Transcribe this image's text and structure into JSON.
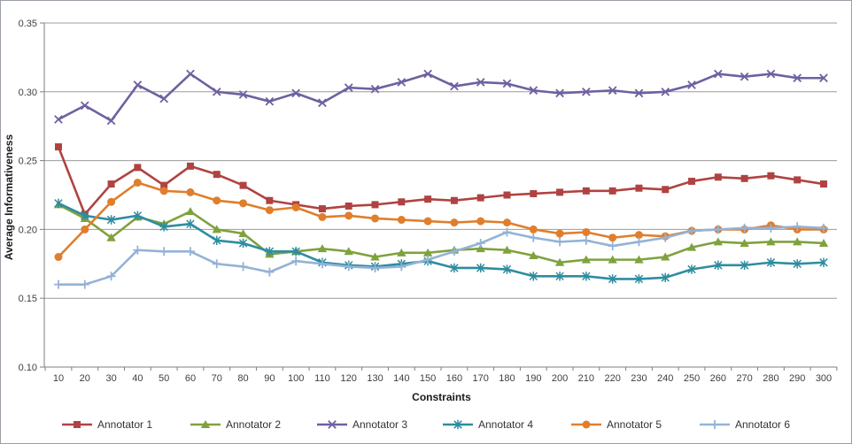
{
  "chart_data": {
    "type": "line",
    "title": "",
    "xlabel": "Constraints",
    "ylabel": "Average Informativeness",
    "x": [
      10,
      20,
      30,
      40,
      50,
      60,
      70,
      80,
      90,
      100,
      110,
      120,
      130,
      140,
      150,
      160,
      170,
      180,
      190,
      200,
      210,
      220,
      230,
      240,
      250,
      260,
      270,
      280,
      290,
      300
    ],
    "ylim": [
      0.1,
      0.35
    ],
    "y_ticks": [
      0.35,
      0.3,
      0.25,
      0.2,
      0.15,
      0.1
    ],
    "y_tick_labels": [
      "0.35",
      "0.30",
      "0.25",
      "0.20",
      "0.15",
      "0.10"
    ],
    "grid": "horizontal",
    "legend_position": "bottom",
    "grid_color": "#9c9c9c",
    "axis_color": "#7f7f7f",
    "tick_text_color": "#3f3f3f",
    "background_color": "#ffffff",
    "series": [
      {
        "name": "Annotator 1",
        "marker": "square",
        "color": "#b04341",
        "values": [
          0.26,
          0.211,
          0.233,
          0.245,
          0.232,
          0.246,
          0.24,
          0.232,
          0.221,
          0.218,
          0.215,
          0.217,
          0.218,
          0.22,
          0.222,
          0.221,
          0.223,
          0.225,
          0.226,
          0.227,
          0.228,
          0.228,
          0.23,
          0.229,
          0.235,
          0.238,
          0.237,
          0.239,
          0.236,
          0.233
        ]
      },
      {
        "name": "Annotator 2",
        "marker": "triangle",
        "color": "#7fa23e",
        "values": [
          0.218,
          0.208,
          0.194,
          0.209,
          0.204,
          0.213,
          0.2,
          0.197,
          0.182,
          0.184,
          0.186,
          0.184,
          0.18,
          0.183,
          0.183,
          0.185,
          0.186,
          0.185,
          0.181,
          0.176,
          0.178,
          0.178,
          0.178,
          0.18,
          0.187,
          0.191,
          0.19,
          0.191,
          0.191,
          0.19
        ]
      },
      {
        "name": "Annotator 3",
        "marker": "x",
        "color": "#6f60a0",
        "values": [
          0.28,
          0.29,
          0.279,
          0.305,
          0.295,
          0.313,
          0.3,
          0.298,
          0.293,
          0.299,
          0.292,
          0.303,
          0.302,
          0.307,
          0.313,
          0.304,
          0.307,
          0.306,
          0.301,
          0.299,
          0.3,
          0.301,
          0.299,
          0.3,
          0.305,
          0.313,
          0.311,
          0.313,
          0.31,
          0.31
        ]
      },
      {
        "name": "Annotator 4",
        "marker": "asterisk",
        "color": "#2e8da0",
        "values": [
          0.219,
          0.21,
          0.207,
          0.21,
          0.202,
          0.204,
          0.192,
          0.19,
          0.184,
          0.184,
          0.176,
          0.174,
          0.173,
          0.175,
          0.177,
          0.172,
          0.172,
          0.171,
          0.166,
          0.166,
          0.166,
          0.164,
          0.164,
          0.165,
          0.171,
          0.174,
          0.174,
          0.176,
          0.175,
          0.176
        ]
      },
      {
        "name": "Annotator 5",
        "marker": "circle",
        "color": "#e07e2c",
        "values": [
          0.18,
          0.2,
          0.22,
          0.234,
          0.228,
          0.227,
          0.221,
          0.219,
          0.214,
          0.216,
          0.209,
          0.21,
          0.208,
          0.207,
          0.206,
          0.205,
          0.206,
          0.205,
          0.2,
          0.197,
          0.198,
          0.194,
          0.196,
          0.195,
          0.199,
          0.2,
          0.2,
          0.203,
          0.2,
          0.2
        ]
      },
      {
        "name": "Annotator 6",
        "marker": "plus",
        "color": "#94b2d6",
        "values": [
          0.16,
          0.16,
          0.166,
          0.185,
          0.184,
          0.184,
          0.175,
          0.173,
          0.169,
          0.177,
          0.175,
          0.173,
          0.172,
          0.173,
          0.178,
          0.184,
          0.19,
          0.198,
          0.194,
          0.191,
          0.192,
          0.188,
          0.191,
          0.194,
          0.199,
          0.2,
          0.201,
          0.201,
          0.202,
          0.201
        ]
      }
    ]
  }
}
